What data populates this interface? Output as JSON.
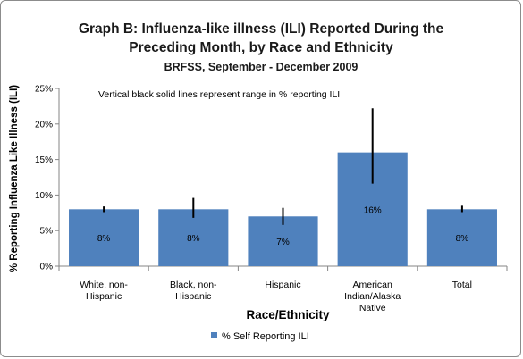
{
  "chart_data": {
    "type": "bar",
    "title_lines": [
      "Graph B: Influenza-like illness (ILI) Reported During the",
      "Preceding Month, by Race and Ethnicity"
    ],
    "subtitle": "BRFSS, September - December 2009",
    "annotation": "Vertical black solid lines represent range in % reporting ILI",
    "xlabel": "Race/Ethnicity",
    "ylabel": "% Reporting Influenza Like Illness (ILI)",
    "ylim": [
      0,
      25
    ],
    "yticks": [
      0,
      5,
      10,
      15,
      20,
      25
    ],
    "ytick_labels": [
      "0%",
      "5%",
      "10%",
      "15%",
      "20%",
      "25%"
    ],
    "categories": [
      [
        "White, non-",
        "Hispanic"
      ],
      [
        "Black, non-",
        "Hispanic"
      ],
      [
        "Hispanic"
      ],
      [
        "American",
        "Indian/Alaska",
        "Native"
      ],
      [
        "Total"
      ]
    ],
    "series": [
      {
        "name": "% Self Reporting ILI",
        "values": [
          8,
          8,
          7,
          16,
          8
        ],
        "labels": [
          "8%",
          "8%",
          "7%",
          "16%",
          "8%"
        ],
        "error_low": [
          7.6,
          6.8,
          5.8,
          11.6,
          7.6
        ],
        "error_high": [
          8.4,
          9.6,
          8.2,
          22.2,
          8.5
        ],
        "color": "#4f81bd"
      }
    ],
    "grid": false,
    "legend_position": "bottom-center"
  }
}
